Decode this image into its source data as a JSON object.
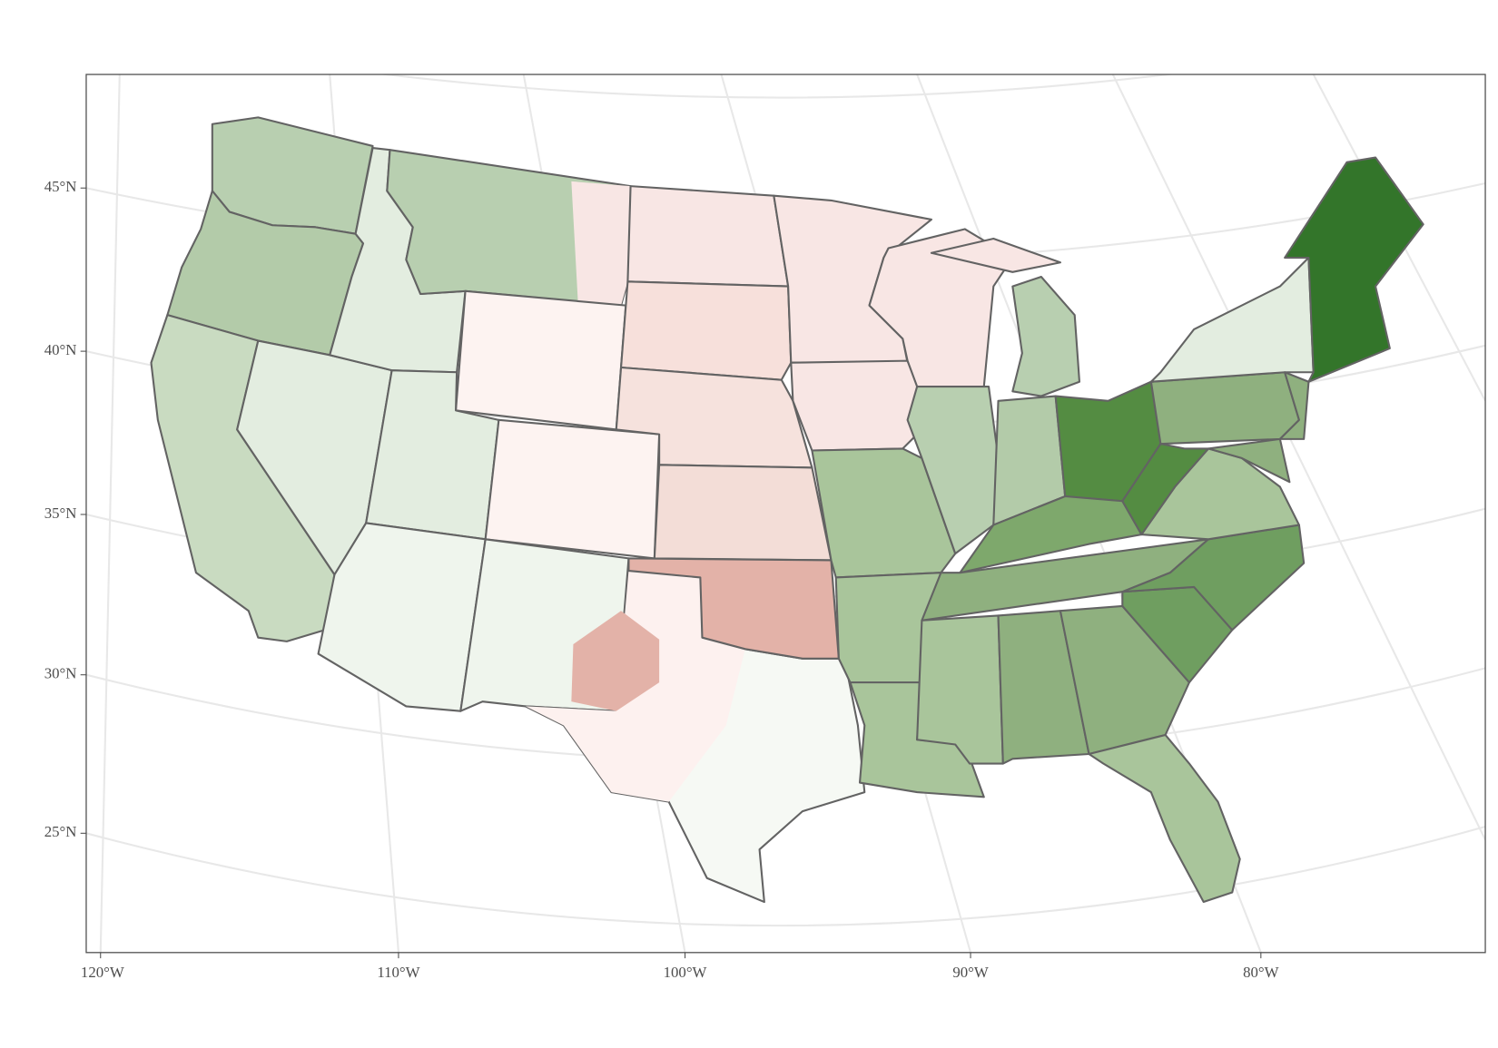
{
  "axes": {
    "lat_labels": [
      "45°N",
      "40°N",
      "35°N",
      "30°N",
      "25°N"
    ],
    "lon_labels": [
      "120°W",
      "110°W",
      "100°W",
      "90°W",
      "80°W"
    ]
  }
}
